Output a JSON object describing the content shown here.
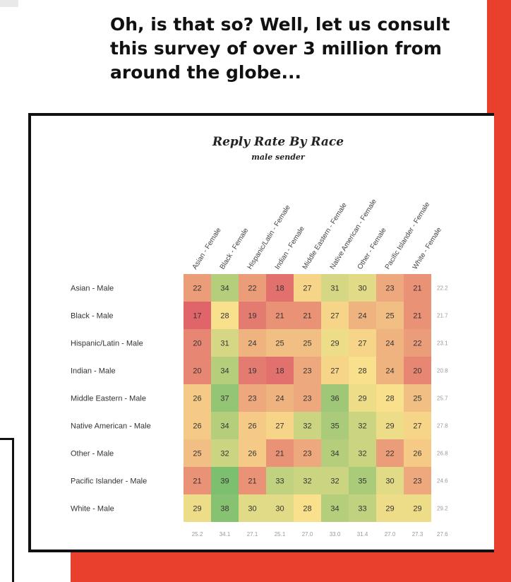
{
  "caption": "Oh, is that so? Well, let us consult this survey of over 3 million from around the globe...",
  "colors": {
    "accent_red": "#e8402c",
    "cell_low": "#e0656a",
    "cell_mid": "#f8e08c",
    "cell_high": "#7cbf6f"
  },
  "chart_data": {
    "type": "heatmap",
    "title": "Reply Rate By Race",
    "subtitle": "male sender",
    "columns": [
      "Asian - Female",
      "Black - Female",
      "Hispanic/Latin - Female",
      "Indian - Female",
      "Middle Eastern - Female",
      "Native American - Female",
      "Other - Female",
      "Pacific Islander - Female",
      "White - Female"
    ],
    "rows": [
      "Asian - Male",
      "Black - Male",
      "Hispanic/Latin - Male",
      "Indian - Male",
      "Middle Eastern - Male",
      "Native American - Male",
      "Other - Male",
      "Pacific Islander - Male",
      "White - Male"
    ],
    "values": [
      [
        22,
        34,
        22,
        18,
        27,
        31,
        30,
        23,
        21
      ],
      [
        17,
        28,
        19,
        21,
        21,
        27,
        24,
        25,
        21
      ],
      [
        20,
        31,
        24,
        25,
        25,
        29,
        27,
        24,
        22
      ],
      [
        20,
        34,
        19,
        18,
        23,
        27,
        28,
        24,
        20
      ],
      [
        26,
        37,
        23,
        24,
        23,
        36,
        29,
        28,
        25
      ],
      [
        26,
        34,
        26,
        27,
        32,
        35,
        32,
        29,
        27
      ],
      [
        25,
        32,
        26,
        21,
        23,
        34,
        32,
        22,
        26
      ],
      [
        21,
        39,
        21,
        33,
        32,
        32,
        35,
        30,
        23
      ],
      [
        29,
        38,
        30,
        30,
        28,
        34,
        33,
        29,
        29
      ]
    ],
    "row_averages": [
      "22.2",
      "21.7",
      "23.1",
      "20.8",
      "25.7",
      "27.8",
      "26.8",
      "24.6",
      "29.2"
    ],
    "column_averages": [
      "25.2",
      "34.1",
      "27.1",
      "25.1",
      "27.0",
      "33.0",
      "31.4",
      "27.0",
      "27.3"
    ],
    "overall_average": "27.6",
    "color_scale": {
      "low": 17,
      "mid": 28,
      "high": 39
    }
  }
}
